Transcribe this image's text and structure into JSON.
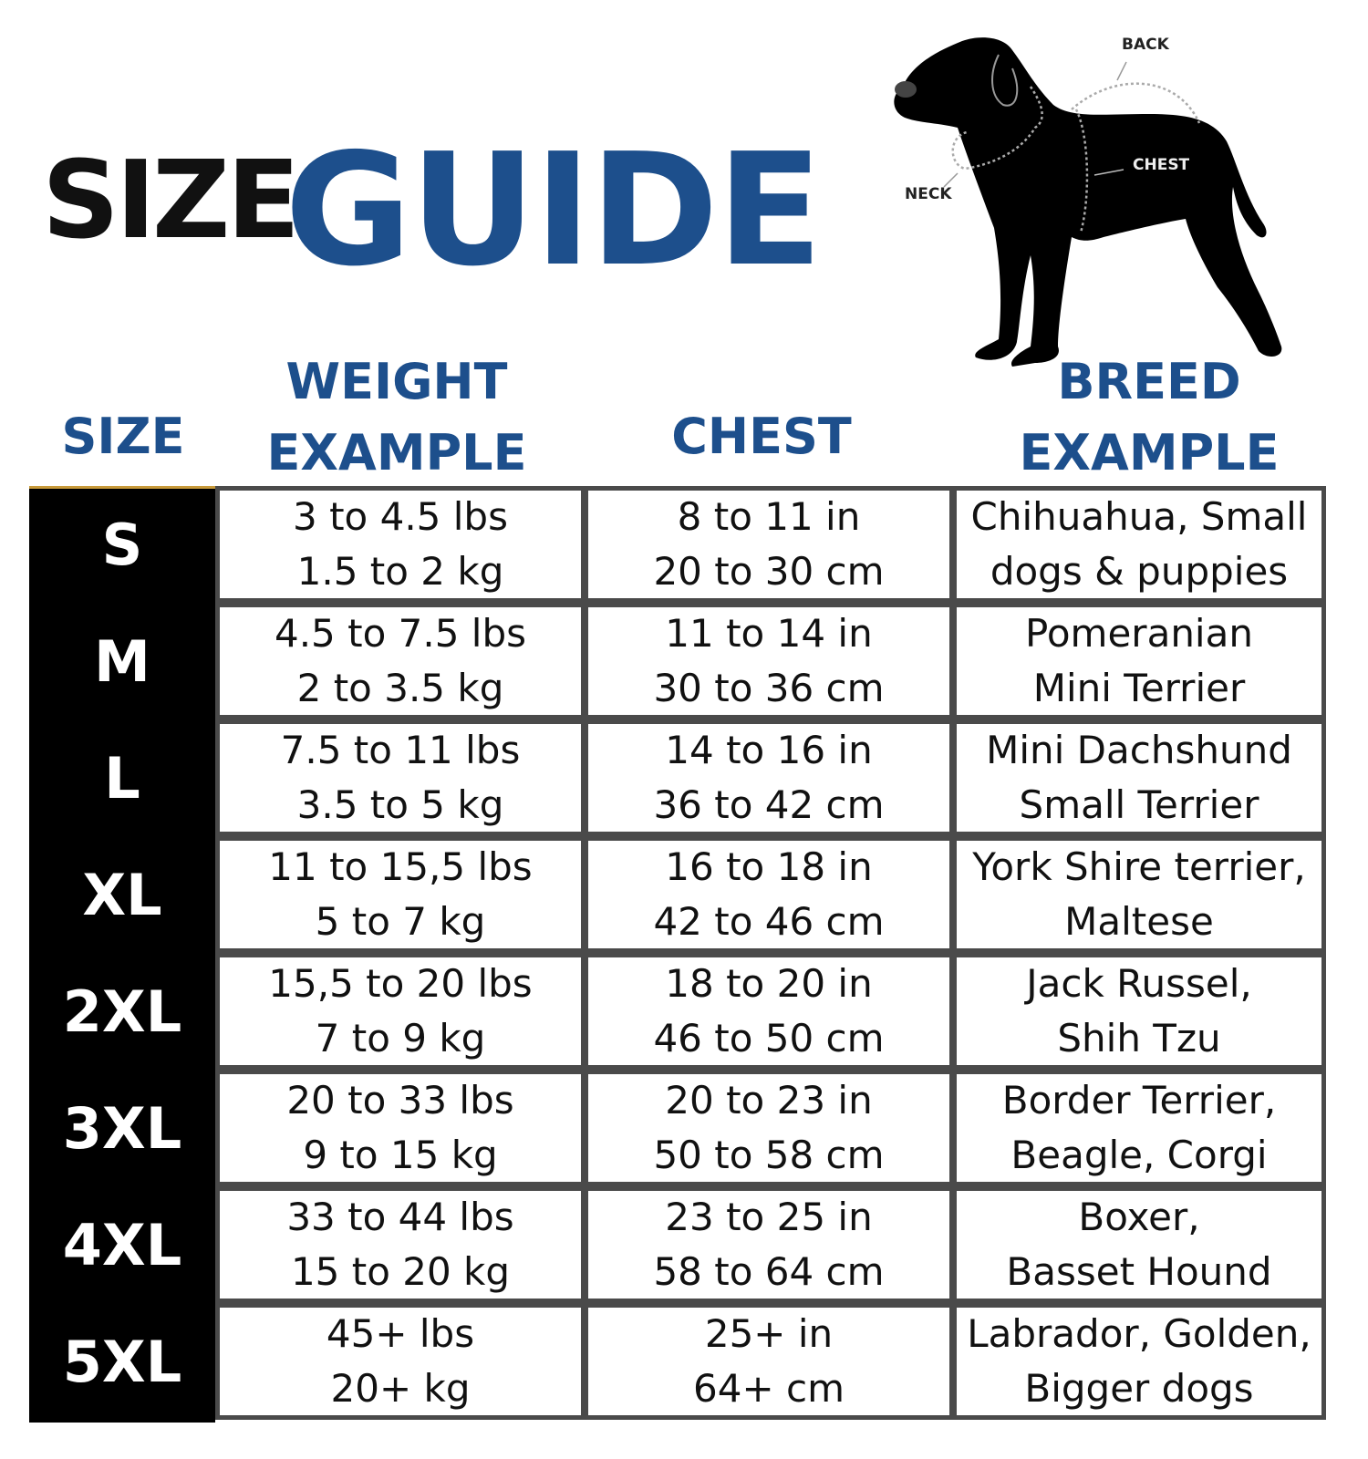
{
  "title": {
    "size": "SIZE",
    "guide": "GUIDE"
  },
  "diagram": {
    "labels": {
      "back": "BACK",
      "chest": "CHEST",
      "neck": "NECK"
    }
  },
  "headers": {
    "size": "SIZE",
    "weight": [
      "WEIGHT",
      "EXAMPLE"
    ],
    "chest": "CHEST",
    "breed": [
      "BREED",
      "EXAMPLE"
    ]
  },
  "colors": {
    "accent": "#1d4f8c",
    "size_column": "#000000",
    "grid": "#4a4a4a"
  },
  "rows": [
    {
      "size": "S",
      "weight": [
        "3 to 4.5 lbs",
        "1.5 to 2 kg"
      ],
      "chest": [
        "8 to 11 in",
        "20 to 30 cm"
      ],
      "breed": [
        "Chihuahua, Small",
        "dogs & puppies"
      ]
    },
    {
      "size": "M",
      "weight": [
        "4.5 to 7.5 lbs",
        "2 to 3.5 kg"
      ],
      "chest": [
        "11 to 14 in",
        "30 to 36 cm"
      ],
      "breed": [
        "Pomeranian",
        "Mini Terrier"
      ]
    },
    {
      "size": "L",
      "weight": [
        "7.5 to 11 lbs",
        "3.5 to 5 kg"
      ],
      "chest": [
        "14 to 16 in",
        "36 to 42 cm"
      ],
      "breed": [
        "Mini Dachshund",
        "Small Terrier"
      ]
    },
    {
      "size": "XL",
      "weight": [
        "11 to 15,5 lbs",
        "5 to 7 kg"
      ],
      "chest": [
        "16 to 18 in",
        "42 to 46 cm"
      ],
      "breed": [
        "York Shire terrier,",
        "Maltese"
      ]
    },
    {
      "size": "2XL",
      "weight": [
        "15,5 to 20 lbs",
        "7 to 9 kg"
      ],
      "chest": [
        "18 to 20 in",
        "46 to 50 cm"
      ],
      "breed": [
        "Jack Russel,",
        "Shih Tzu"
      ]
    },
    {
      "size": "3XL",
      "weight": [
        "20 to 33 lbs",
        "9 to 15 kg"
      ],
      "chest": [
        "20 to 23 in",
        "50 to 58 cm"
      ],
      "breed": [
        "Border Terrier,",
        "Beagle, Corgi"
      ]
    },
    {
      "size": "4XL",
      "weight": [
        "33 to 44 lbs",
        "15 to 20 kg"
      ],
      "chest": [
        "23 to 25 in",
        "58 to 64 cm"
      ],
      "breed": [
        "Boxer,",
        "Basset Hound"
      ]
    },
    {
      "size": "5XL",
      "weight": [
        "45+ lbs",
        "20+ kg"
      ],
      "chest": [
        "25+ in",
        "64+ cm"
      ],
      "breed": [
        "Labrador, Golden,",
        "Bigger dogs"
      ]
    }
  ]
}
